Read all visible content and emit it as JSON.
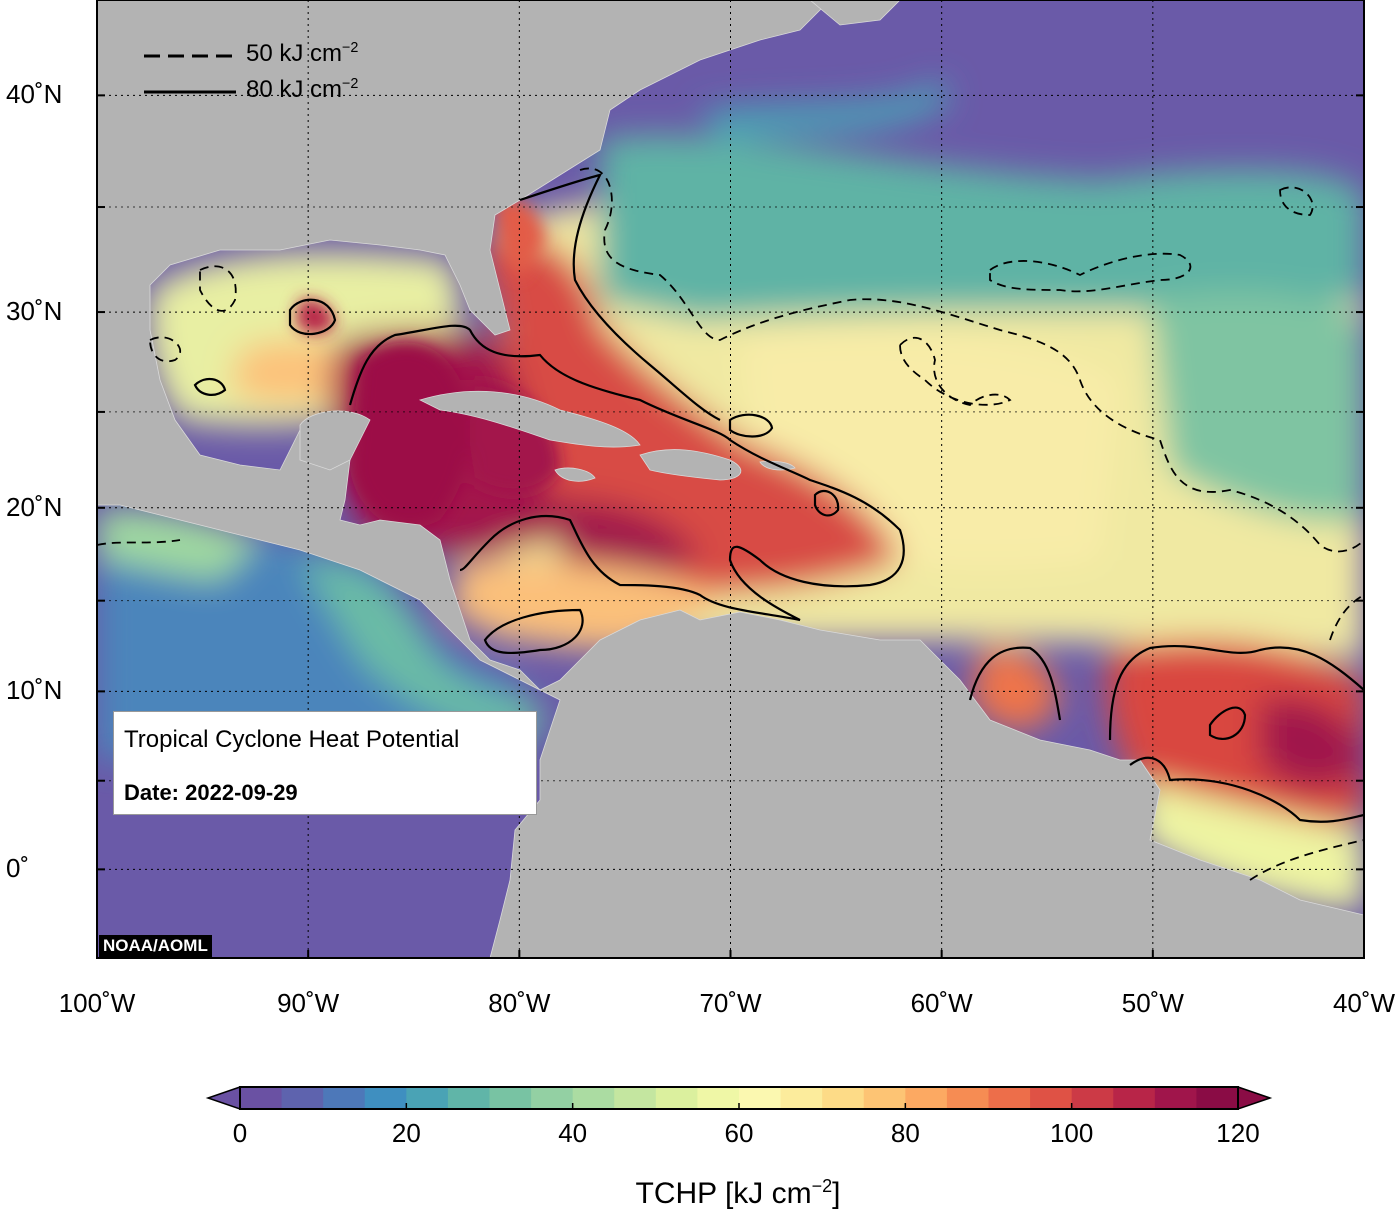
{
  "map": {
    "lat_labels": [
      {
        "value": 40,
        "text": "40˚N"
      },
      {
        "value": 30,
        "text": "30˚N"
      },
      {
        "value": 20,
        "text": "20˚N"
      },
      {
        "value": 10,
        "text": "10˚N"
      },
      {
        "value": 0,
        "text": "0˚"
      }
    ],
    "lon_labels": [
      {
        "value": -100,
        "text": "100˚W"
      },
      {
        "value": -90,
        "text": "90˚W"
      },
      {
        "value": -80,
        "text": "80˚W"
      },
      {
        "value": -70,
        "text": "70˚W"
      },
      {
        "value": -60,
        "text": "60˚W"
      },
      {
        "value": -50,
        "text": "50˚W"
      },
      {
        "value": -40,
        "text": "40˚W"
      }
    ],
    "lon_range": [
      -100,
      -40
    ],
    "lat_range": [
      -5,
      44
    ],
    "grid": true,
    "land_color": "#b3b3b3",
    "ocean_low_color": "#6a5aa8"
  },
  "legend": {
    "dashed_label": "50 kJ cm",
    "solid_label": "80 kJ cm",
    "exponent": "−2"
  },
  "info_box": {
    "title": "Tropical Cyclone Heat Potential",
    "date": "Date: 2022-09-29"
  },
  "credit": "NOAA/AOML",
  "colorbar": {
    "ticks": [
      "0",
      "20",
      "40",
      "60",
      "80",
      "100",
      "120"
    ],
    "range": [
      0,
      120
    ],
    "step": 5,
    "title": "TCHP [kJ cm",
    "title_exponent": "−2",
    "title_suffix": "]",
    "colors": [
      "#6a51a3",
      "#5e63ae",
      "#4d78b9",
      "#3f8fc0",
      "#4aa3b5",
      "#60b5a8",
      "#78c3a3",
      "#93d0a3",
      "#abdca2",
      "#c4e6a0",
      "#dbf09e",
      "#eff7a6",
      "#fbf8b0",
      "#fcec9c",
      "#fddb87",
      "#fdc474",
      "#fca962",
      "#f68c53",
      "#ed6e4a",
      "#df5245",
      "#cc3a46",
      "#b82548",
      "#a0154b",
      "#8a0c45"
    ]
  }
}
